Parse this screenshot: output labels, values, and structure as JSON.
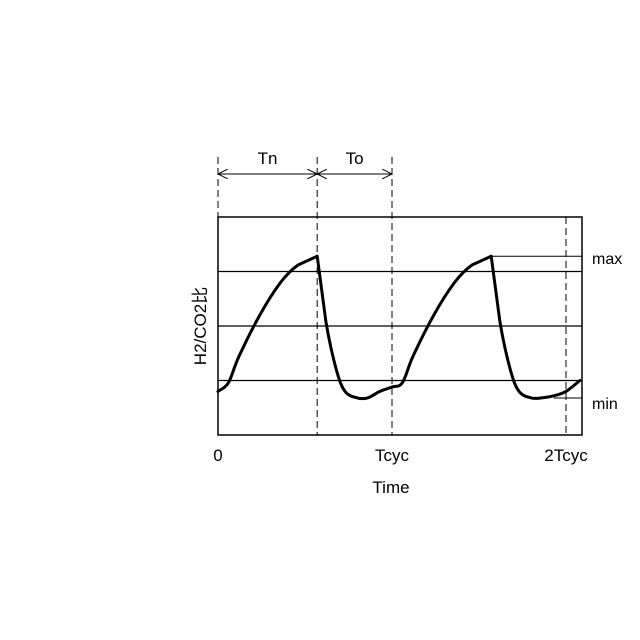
{
  "chart_data": {
    "type": "line",
    "title": "",
    "xlabel": "Time",
    "ylabel": "H2/CO2比",
    "x_ticks": [
      "0",
      "Tcyc",
      "2Tcyc"
    ],
    "x_tick_values": [
      0,
      1,
      2
    ],
    "xlim": [
      0,
      2.08
    ],
    "ylim": [
      0,
      1
    ],
    "grid": {
      "horizontal": [
        0.25,
        0.5,
        0.75
      ],
      "vertical": false
    },
    "level_labels": [
      {
        "label": "max",
        "y": 0.82
      },
      {
        "label": "min",
        "y": 0.17
      }
    ],
    "intervals": [
      {
        "label": "Tn",
        "start": 0,
        "end": 0.57
      },
      {
        "label": "To",
        "start": 0.57,
        "end": 1.0
      }
    ],
    "markers_x": [
      0,
      0.57,
      1.0,
      2.0
    ],
    "series": [
      {
        "x": [
          0,
          0.06,
          0.12,
          0.24,
          0.36,
          0.46,
          0.57,
          0.62,
          0.68,
          0.73,
          0.8,
          0.86,
          0.93,
          1.0,
          1.06,
          1.12,
          1.24,
          1.36,
          1.46,
          1.57,
          1.62,
          1.68,
          1.73,
          1.8,
          1.86,
          1.93,
          2.0,
          2.08
        ],
        "y": [
          0.2,
          0.24,
          0.36,
          0.55,
          0.7,
          0.78,
          0.82,
          0.52,
          0.3,
          0.2,
          0.17,
          0.17,
          0.2,
          0.22,
          0.24,
          0.36,
          0.55,
          0.7,
          0.78,
          0.82,
          0.52,
          0.3,
          0.2,
          0.17,
          0.17,
          0.18,
          0.2,
          0.25
        ]
      }
    ]
  }
}
